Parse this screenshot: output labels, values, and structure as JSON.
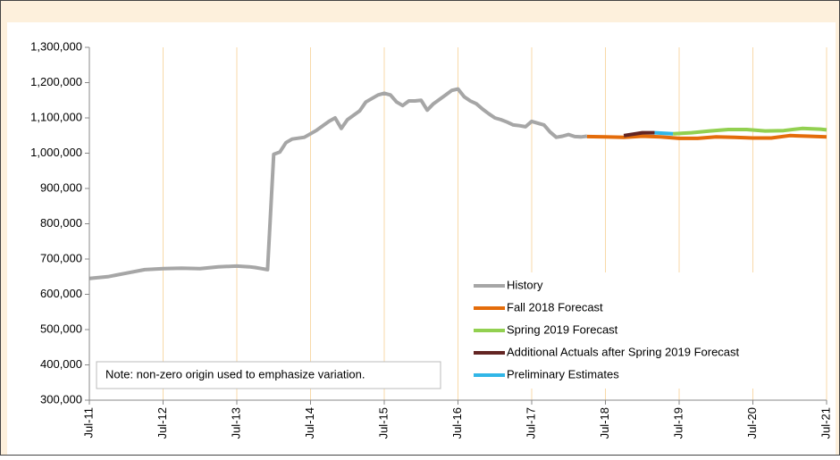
{
  "chart_data": {
    "type": "line",
    "annotation": "Note: non-zero origin used to emphasize variation.",
    "xlim": [
      0,
      120
    ],
    "xticks": [
      {
        "value": 0,
        "label": "Jul-11"
      },
      {
        "value": 12,
        "label": "Jul-12"
      },
      {
        "value": 24,
        "label": "Jul-13"
      },
      {
        "value": 36,
        "label": "Jul-14"
      },
      {
        "value": 48,
        "label": "Jul-15"
      },
      {
        "value": 60,
        "label": "Jul-16"
      },
      {
        "value": 72,
        "label": "Jul-17"
      },
      {
        "value": 84,
        "label": "Jul-18"
      },
      {
        "value": 96,
        "label": "Jul-19"
      },
      {
        "value": 108,
        "label": "Jul-20"
      },
      {
        "value": 120,
        "label": "Jul-21"
      }
    ],
    "ylim": [
      300000,
      1300000
    ],
    "yticks": [
      {
        "value": 300000,
        "label": "300,000"
      },
      {
        "value": 400000,
        "label": "400,000"
      },
      {
        "value": 500000,
        "label": "500,000"
      },
      {
        "value": 600000,
        "label": "600,000"
      },
      {
        "value": 700000,
        "label": "700,000"
      },
      {
        "value": 800000,
        "label": "800,000"
      },
      {
        "value": 900000,
        "label": "900,000"
      },
      {
        "value": 1000000,
        "label": "1,000,000"
      },
      {
        "value": 1100000,
        "label": "1,100,000"
      },
      {
        "value": 1200000,
        "label": "1,200,000"
      },
      {
        "value": 1300000,
        "label": "1,300,000"
      }
    ],
    "grid": "x",
    "legend": "lower right",
    "series": [
      {
        "name": "History",
        "color": "#a6a6a6",
        "x": [
          0,
          3,
          6,
          9,
          12,
          15,
          18,
          21,
          24,
          26,
          27,
          28,
          29,
          30,
          31,
          32,
          33,
          35,
          37,
          39,
          40,
          41,
          42,
          44,
          45,
          47,
          48,
          49,
          50,
          51,
          52,
          53,
          54,
          55,
          56,
          58,
          59,
          60,
          61,
          62,
          63,
          64,
          65,
          66,
          67,
          68,
          69,
          70,
          71,
          72,
          73,
          74,
          75,
          76,
          77,
          78,
          79,
          80,
          81
        ],
        "values": [
          645000,
          650000,
          660000,
          670000,
          673000,
          674000,
          673000,
          678000,
          680000,
          678000,
          676000,
          673000,
          670000,
          997000,
          1003000,
          1030000,
          1040000,
          1045000,
          1065000,
          1090000,
          1100000,
          1070000,
          1095000,
          1120000,
          1145000,
          1165000,
          1170000,
          1165000,
          1145000,
          1135000,
          1148000,
          1148000,
          1150000,
          1122000,
          1140000,
          1165000,
          1178000,
          1182000,
          1160000,
          1148000,
          1140000,
          1125000,
          1112000,
          1100000,
          1095000,
          1088000,
          1080000,
          1078000,
          1075000,
          1090000,
          1085000,
          1080000,
          1060000,
          1045000,
          1048000,
          1053000,
          1047000,
          1046000,
          1048000
        ]
      },
      {
        "name": "Fall 2018 Forecast",
        "color": "#e46c0a",
        "x": [
          81,
          84,
          87,
          90,
          93,
          96,
          99,
          102,
          105,
          108,
          111,
          114,
          117,
          120
        ],
        "values": [
          1047000,
          1046000,
          1045000,
          1048000,
          1046000,
          1042000,
          1042000,
          1046000,
          1045000,
          1043000,
          1043000,
          1050000,
          1048000,
          1046000
        ]
      },
      {
        "name": "Spring 2019 Forecast",
        "color": "#92d050",
        "x": [
          95,
          98,
          101,
          104,
          107,
          110,
          113,
          116,
          119,
          120
        ],
        "values": [
          1055000,
          1058000,
          1063000,
          1067000,
          1067000,
          1063000,
          1064000,
          1070000,
          1068000,
          1066000
        ]
      },
      {
        "name": "Additional Actuals after Spring 2019 Forecast",
        "color": "#632523",
        "x": [
          87,
          90,
          92
        ],
        "values": [
          1050000,
          1058000,
          1058000
        ]
      },
      {
        "name": "Preliminary Estimates",
        "color": "#31b6e7",
        "x": [
          92,
          95
        ],
        "values": [
          1058000,
          1055000
        ]
      }
    ]
  }
}
